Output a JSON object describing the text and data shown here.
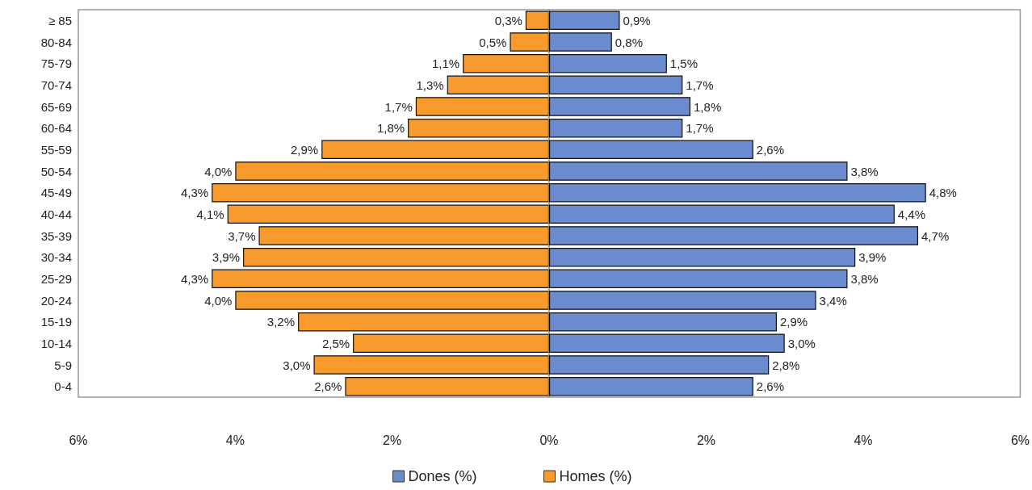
{
  "chart_data": [
    {
      "type": "bar",
      "orientation": "horizontal",
      "categories": [
        "≥ 85",
        "80-84",
        "75-79",
        "70-74",
        "65-69",
        "60-64",
        "55-59",
        "50-54",
        "45-49",
        "40-44",
        "35-39",
        "30-34",
        "25-29",
        "20-24",
        "15-19",
        "10-14",
        "5-9",
        "0-4"
      ],
      "series": [
        {
          "name": "Homes (%)",
          "color": "#f89b2c",
          "values": [
            0.3,
            0.5,
            1.1,
            1.3,
            1.7,
            1.8,
            2.9,
            4.0,
            4.3,
            4.1,
            3.7,
            3.9,
            4.3,
            4.0,
            3.2,
            2.5,
            3.0,
            2.6
          ],
          "value_labels": [
            "0,3%",
            "0,5%",
            "1,1%",
            "1,3%",
            "1,7%",
            "1,8%",
            "2,9%",
            "4,0%",
            "4,3%",
            "4,1%",
            "3,7%",
            "3,9%",
            "4,3%",
            "4,0%",
            "3,2%",
            "2,5%",
            "3,0%",
            "2,6%"
          ]
        }
      ],
      "xlim": [
        6,
        0
      ],
      "xticks": [
        {
          "value": 6,
          "label": "6%"
        },
        {
          "value": 4,
          "label": "4%"
        },
        {
          "value": 2,
          "label": "2%"
        },
        {
          "value": 0,
          "label": "0%"
        }
      ],
      "legend": "bottom"
    },
    {
      "type": "bar",
      "orientation": "horizontal",
      "categories": [
        null,
        null,
        null,
        null,
        null,
        null,
        null,
        null,
        null,
        null,
        null,
        null,
        null,
        null,
        null,
        null,
        null,
        null
      ],
      "series": [
        {
          "name": "Dones (%)",
          "color": "#6a8cce",
          "values": [
            0.9,
            0.8,
            1.5,
            1.7,
            1.8,
            1.7,
            2.6,
            3.8,
            4.8,
            4.4,
            4.7,
            3.9,
            3.8,
            3.4,
            2.9,
            3.0,
            2.8,
            2.6
          ],
          "value_labels": [
            "0,9%",
            "0,8%",
            "1,5%",
            "1,7%",
            "1,8%",
            "1,7%",
            "2,6%",
            "3,8%",
            "4,8%",
            "4,4%",
            "4,7%",
            "3,9%",
            "3,8%",
            "3,4%",
            "2,9%",
            "3,0%",
            "2,8%",
            "2,6%"
          ]
        }
      ],
      "xlim": [
        0,
        6
      ],
      "xticks": [
        {
          "value": 0,
          "label": null
        },
        {
          "value": 2,
          "label": "2%"
        },
        {
          "value": 4,
          "label": "4%"
        },
        {
          "value": 6,
          "label": "6%"
        }
      ],
      "tick_labels": "x",
      "legend": "bottom"
    }
  ]
}
